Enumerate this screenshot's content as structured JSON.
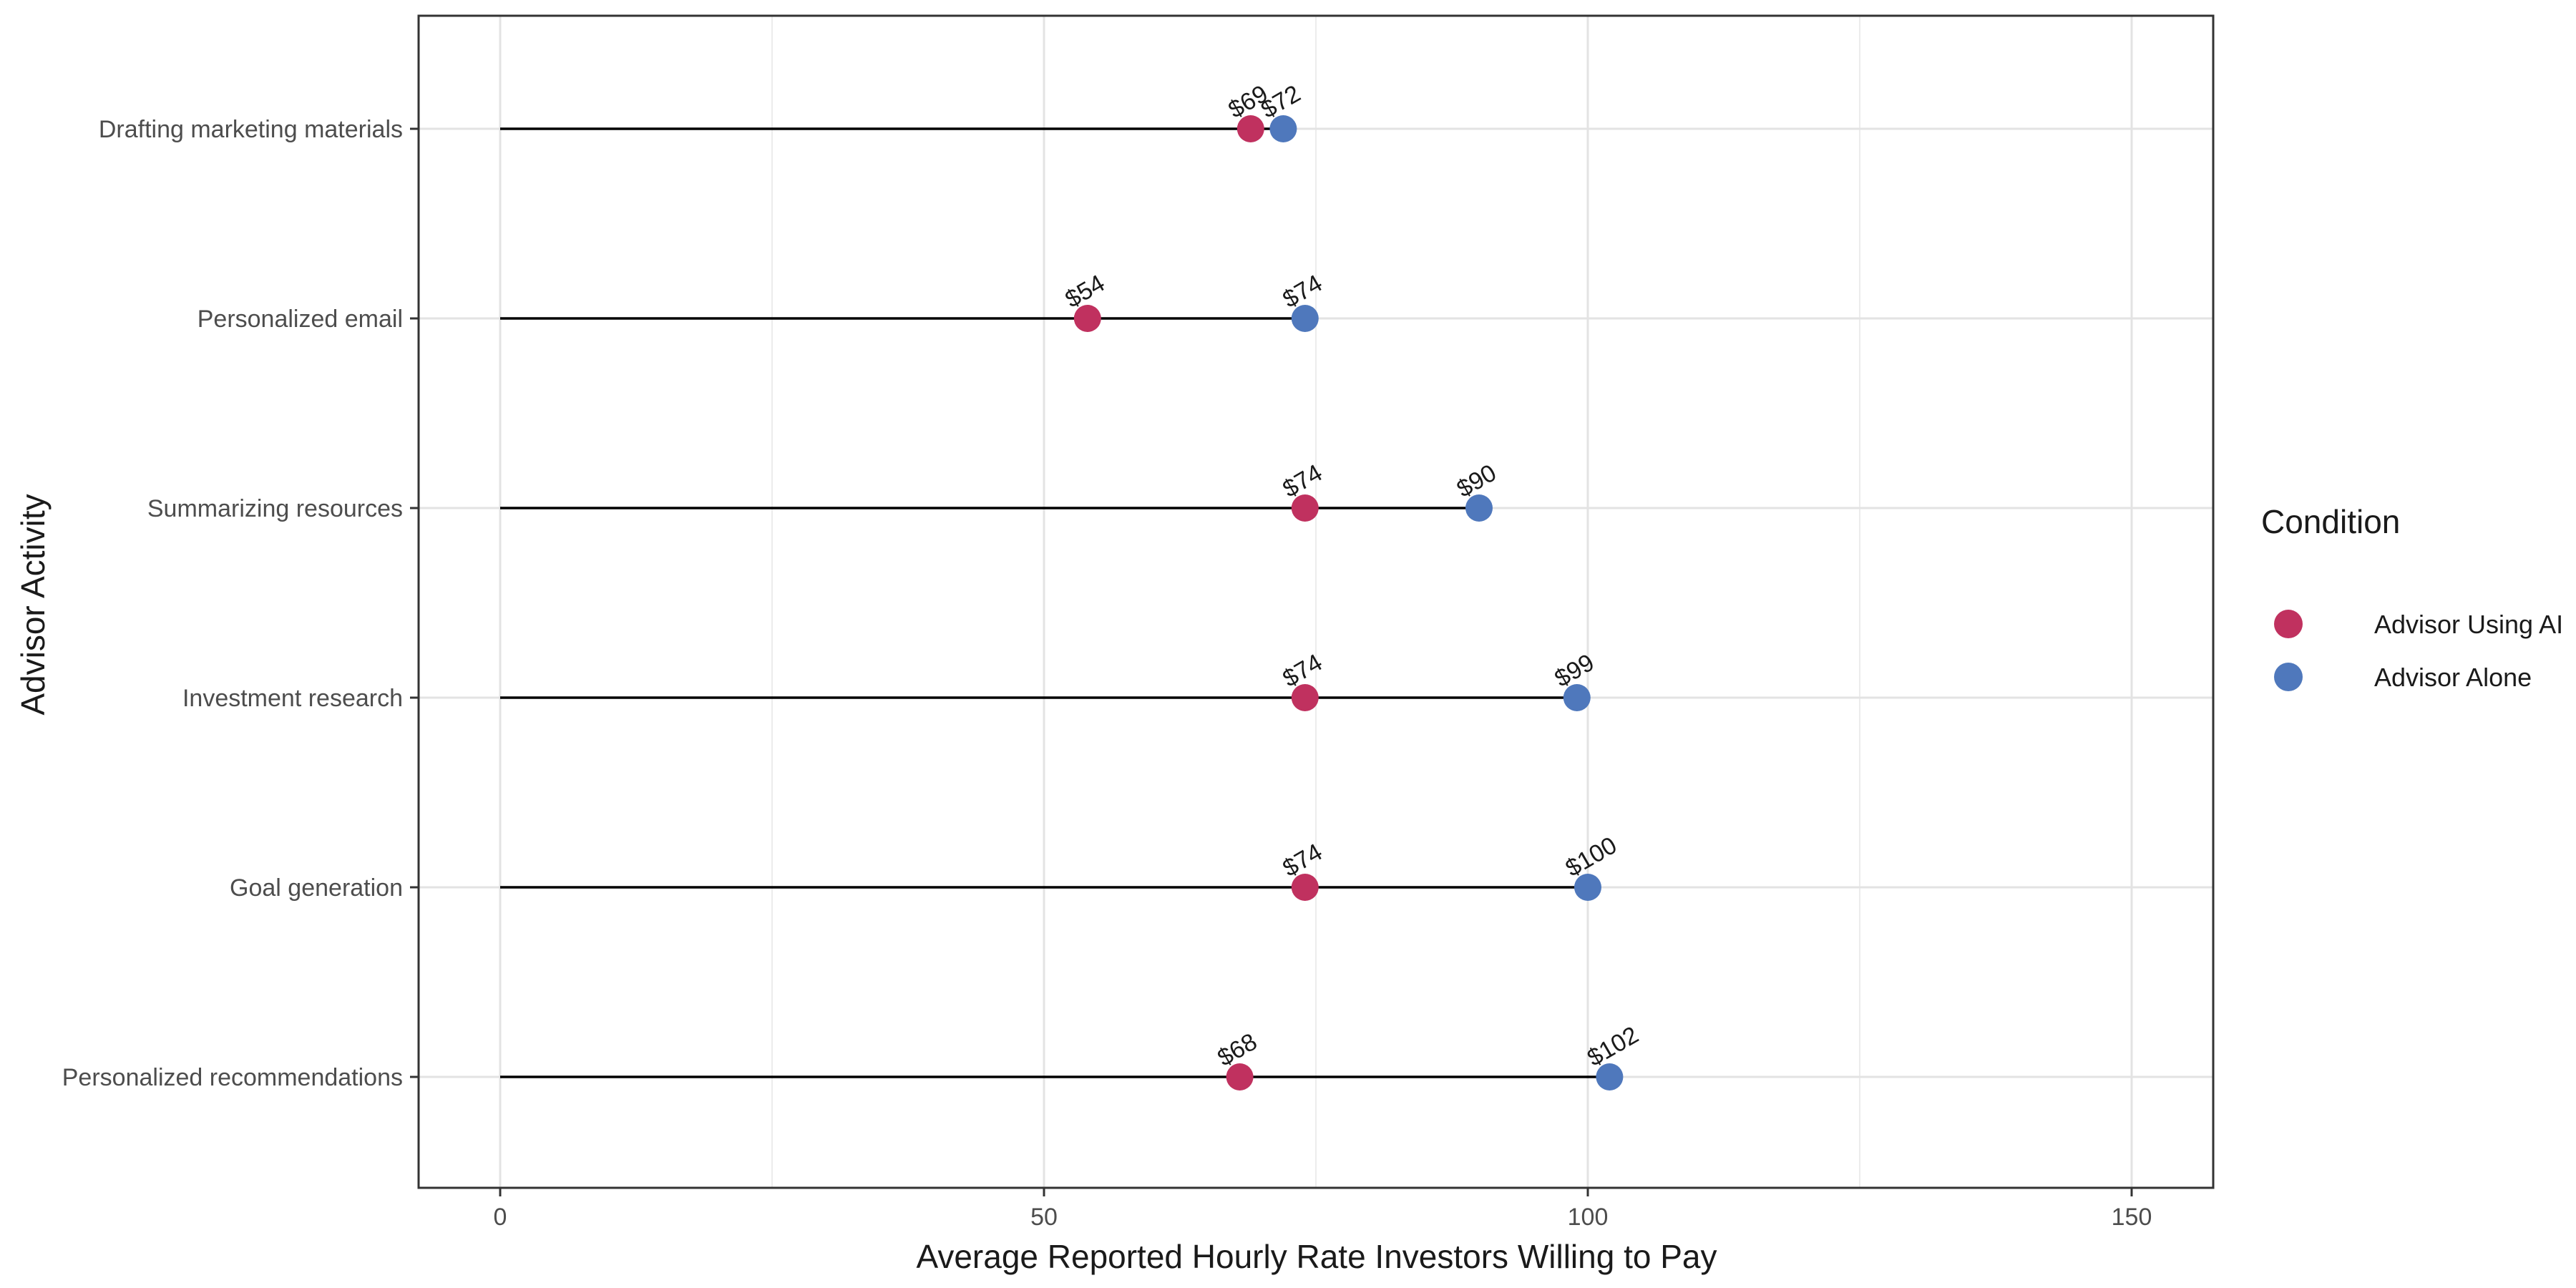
{
  "chart_data": {
    "type": "dumbbell",
    "title": "",
    "xlabel": "Average Reported Hourly Rate Investors Willing to Pay",
    "ylabel": "Advisor Activity",
    "xlim": [
      -7.5,
      157.5
    ],
    "xticks": [
      0,
      50,
      100,
      150
    ],
    "x_minor_gridlines": [
      25,
      75,
      125
    ],
    "grid": true,
    "legend": {
      "title": "Condition",
      "position": "right"
    },
    "categories": [
      "Drafting marketing materials",
      "Personalized email",
      "Summarizing resources",
      "Investment research",
      "Goal generation",
      "Personalized recommendations"
    ],
    "series": [
      {
        "name": "Advisor Using AI",
        "color": "#C0315F",
        "values": [
          69,
          54,
          74,
          74,
          74,
          68
        ],
        "labels": [
          "$69",
          "$54",
          "$74",
          "$74",
          "$74",
          "$68"
        ]
      },
      {
        "name": "Advisor Alone",
        "color": "#4F78BC",
        "values": [
          72,
          74,
          90,
          99,
          100,
          102
        ],
        "labels": [
          "$72",
          "$74",
          "$90",
          "$99",
          "$100",
          "$102"
        ]
      }
    ],
    "segment_start": 0
  }
}
